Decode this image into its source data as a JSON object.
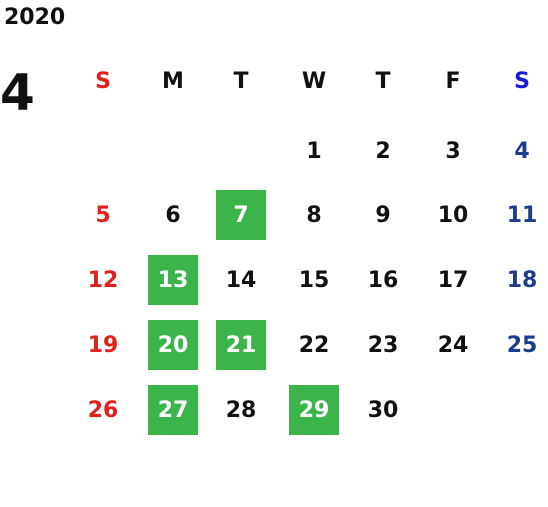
{
  "year": "2020",
  "month": "4",
  "weekdays": [
    "S",
    "M",
    "T",
    "W",
    "T",
    "F",
    "S"
  ],
  "weeks": [
    [
      null,
      null,
      null,
      {
        "day": "1"
      },
      {
        "day": "2"
      },
      {
        "day": "3"
      },
      {
        "day": "4"
      }
    ],
    [
      {
        "day": "5"
      },
      {
        "day": "6"
      },
      {
        "day": "7",
        "highlight": true
      },
      {
        "day": "8"
      },
      {
        "day": "9"
      },
      {
        "day": "10"
      },
      {
        "day": "11"
      }
    ],
    [
      {
        "day": "12"
      },
      {
        "day": "13",
        "highlight": true
      },
      {
        "day": "14"
      },
      {
        "day": "15"
      },
      {
        "day": "16"
      },
      {
        "day": "17"
      },
      {
        "day": "18"
      }
    ],
    [
      {
        "day": "19"
      },
      {
        "day": "20",
        "highlight": true
      },
      {
        "day": "21",
        "highlight": true
      },
      {
        "day": "22"
      },
      {
        "day": "23"
      },
      {
        "day": "24"
      },
      {
        "day": "25"
      }
    ],
    [
      {
        "day": "26"
      },
      {
        "day": "27",
        "highlight": true
      },
      {
        "day": "28"
      },
      {
        "day": "29",
        "highlight": true
      },
      {
        "day": "30"
      },
      null,
      null
    ]
  ],
  "colors": {
    "text": "#111111",
    "sunday": "#e0201c",
    "saturday_header": "#1a1ad6",
    "saturday": "#1e3c8c",
    "highlight": "#3bb54a",
    "highlight_text": "#ffffff"
  }
}
